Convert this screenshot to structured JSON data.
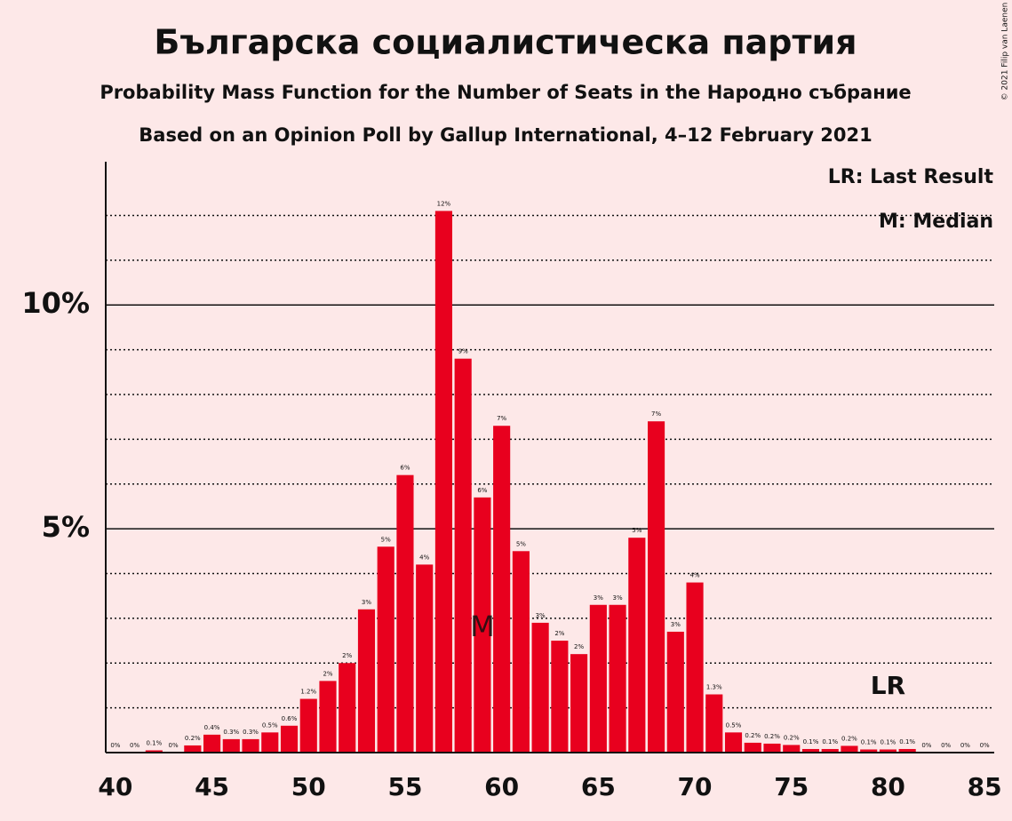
{
  "chart_data": {
    "type": "bar",
    "title": "Българска социалистическа партия",
    "subtitle": "Probability Mass Function for the Number of Seats in the Народно събрание",
    "subtitle2": "Based on an Opinion Poll by Gallup International, 4–12 February 2021",
    "copyright": "© 2021 Filip van Laenen",
    "x": [
      40,
      41,
      42,
      43,
      44,
      45,
      46,
      47,
      48,
      49,
      50,
      51,
      52,
      53,
      54,
      55,
      56,
      57,
      58,
      59,
      60,
      61,
      62,
      63,
      64,
      65,
      66,
      67,
      68,
      69,
      70,
      71,
      72,
      73,
      74,
      75,
      76,
      77,
      78,
      79,
      80,
      81,
      82,
      83,
      84,
      85
    ],
    "values": [
      0,
      0,
      0.05,
      0,
      0.16,
      0.4,
      0.3,
      0.3,
      0.45,
      0.6,
      1.2,
      1.6,
      2.0,
      3.2,
      4.6,
      6.2,
      4.2,
      12.1,
      8.8,
      5.7,
      7.3,
      4.5,
      2.9,
      2.5,
      2.2,
      3.3,
      3.3,
      4.8,
      7.4,
      2.7,
      3.8,
      1.3,
      0.45,
      0.22,
      0.2,
      0.17,
      0.08,
      0.08,
      0.15,
      0.07,
      0.07,
      0.08,
      0,
      0,
      0,
      0
    ],
    "value_labels": [
      "0%",
      "0%",
      "0.1%",
      "0%",
      "0.2%",
      "0.4%",
      "0.3%",
      "0.3%",
      "0.5%",
      "0.6%",
      "1.2%",
      "2%",
      "2%",
      "3%",
      "5%",
      "6%",
      "4%",
      "12%",
      "9%",
      "6%",
      "7%",
      "5%",
      "3%",
      "2%",
      "2%",
      "3%",
      "3%",
      "5%",
      "7%",
      "3%",
      "4%",
      "1.3%",
      "0.5%",
      "0.2%",
      "0.2%",
      "0.2%",
      "0.1%",
      "0.1%",
      "0.2%",
      "0.1%",
      "0.1%",
      "0.1%",
      "0%",
      "0%",
      "0%",
      "0%"
    ],
    "color": "#e8001e",
    "xlim": [
      39.5,
      85.5
    ],
    "xticks": [
      40,
      45,
      50,
      55,
      60,
      65,
      70,
      75,
      80,
      85
    ],
    "ylim": [
      0,
      13.2
    ],
    "yticks": [
      {
        "value": 5,
        "label": "5%"
      },
      {
        "value": 10,
        "label": "10%"
      }
    ],
    "minor_grid": [
      1,
      2,
      3,
      4,
      6,
      7,
      8,
      9,
      11,
      12
    ],
    "median": {
      "x": 59,
      "label": "M"
    },
    "last_result": {
      "x": 80,
      "label": "LR"
    },
    "legend": [
      "LR: Last Result",
      "M: Median"
    ]
  }
}
